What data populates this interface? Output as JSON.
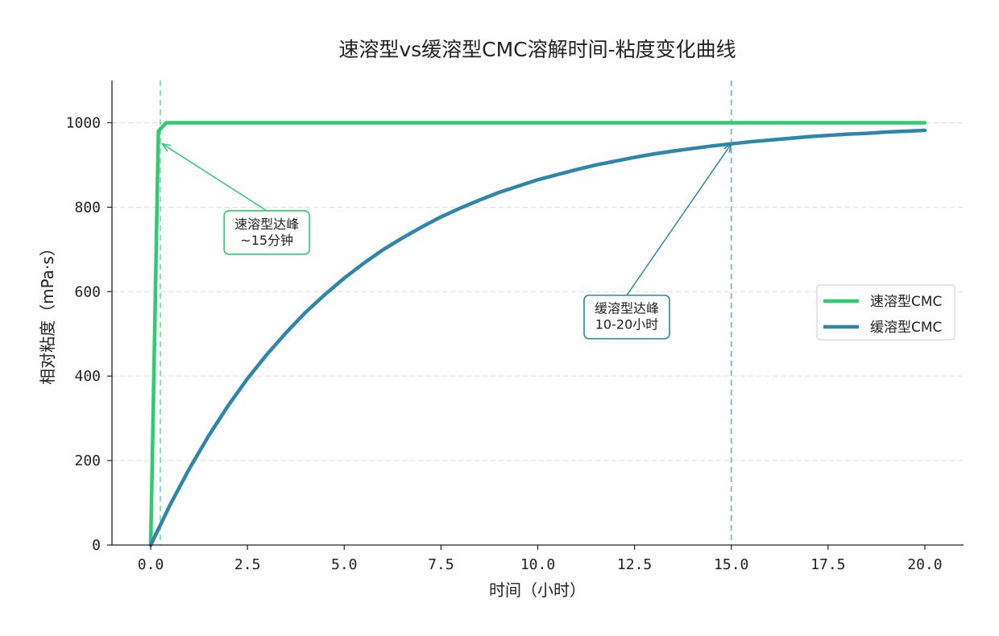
{
  "chart_data": {
    "type": "line",
    "title": "速溶型vs缓溶型CMC溶解时间-粘度变化曲线",
    "xlabel": "时间（小时）",
    "ylabel": "相对粘度（mPa·s）",
    "xlim": [
      -1,
      21
    ],
    "ylim": [
      0,
      1100
    ],
    "x_ticks": [
      "0.0",
      "2.5",
      "5.0",
      "7.5",
      "10.0",
      "12.5",
      "15.0",
      "17.5",
      "20.0"
    ],
    "x_tick_values": [
      0,
      2.5,
      5,
      7.5,
      10,
      12.5,
      15,
      17.5,
      20
    ],
    "y_ticks": [
      "0",
      "200",
      "400",
      "600",
      "800",
      "1000"
    ],
    "y_tick_values": [
      0,
      200,
      400,
      600,
      800,
      1000
    ],
    "grid": "horizontal dashed",
    "legend_position": "center-right",
    "series": [
      {
        "name": "速溶型CMC",
        "color": "#2ecc71",
        "x": [
          0,
          0.2,
          0.25,
          0.4,
          20
        ],
        "y": [
          0,
          980,
          985,
          1000,
          1000
        ]
      },
      {
        "name": "缓溶型CMC",
        "color": "#2e86ab",
        "x": [
          0,
          0.5,
          1,
          1.5,
          2,
          2.5,
          3,
          3.5,
          4,
          4.5,
          5,
          5.5,
          6,
          6.5,
          7,
          7.5,
          8,
          8.5,
          9,
          9.5,
          10,
          10.5,
          11,
          11.5,
          12,
          12.5,
          13,
          13.5,
          14,
          14.5,
          15,
          15.5,
          16,
          16.5,
          17,
          17.5,
          18,
          18.5,
          19,
          19.5,
          20
        ],
        "y": [
          0,
          95,
          181,
          259,
          330,
          394,
          451,
          503,
          551,
          593,
          632,
          667,
          699,
          727,
          753,
          777,
          798,
          817,
          835,
          850,
          865,
          877,
          889,
          900,
          909,
          918,
          926,
          933,
          939,
          945,
          950,
          955,
          959,
          963,
          967,
          970,
          973,
          975,
          978,
          980,
          982
        ]
      }
    ],
    "reference_lines": [
      {
        "x": 0.25,
        "color": "#2ecc71"
      },
      {
        "x": 15,
        "color": "#2e86ab"
      }
    ],
    "annotations": [
      {
        "lines": [
          "速溶型达峰",
          "~15分钟"
        ],
        "target": [
          0.3,
          950
        ],
        "text_at": [
          3,
          740
        ],
        "color": "#2ecc71"
      },
      {
        "lines": [
          "缓溶型达峰",
          "10-20小时"
        ],
        "target": [
          15,
          950
        ],
        "text_at": [
          12.3,
          540
        ],
        "color": "#2e86ab"
      }
    ]
  }
}
